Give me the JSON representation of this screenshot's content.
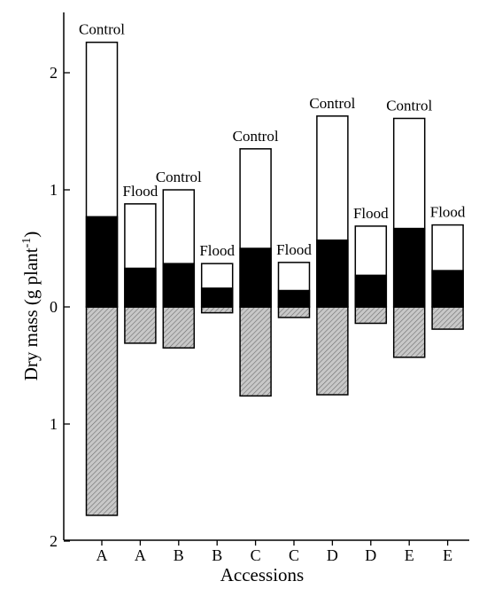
{
  "chart_data": {
    "type": "bar",
    "xlabel": "Accessions",
    "ylabel": "Dry mass (g plant",
    "ylabel_sup": "-1",
    "ylabel_close": ")",
    "yticks": [
      {
        "value": 2,
        "label": "2"
      },
      {
        "value": 1,
        "label": "1"
      },
      {
        "value": 0,
        "label": "0"
      },
      {
        "value": -1,
        "label": "1"
      },
      {
        "value": -2,
        "label": "2"
      }
    ],
    "ylim": [
      -2,
      2.47
    ],
    "categories": [
      "A",
      "A",
      "B",
      "B",
      "C",
      "C",
      "D",
      "D",
      "E",
      "E"
    ],
    "bars": [
      {
        "category": "A",
        "treatment": "Control",
        "black": 0.77,
        "white": 1.49,
        "hatched": 1.78
      },
      {
        "category": "A",
        "treatment": "Flood",
        "black": 0.33,
        "white": 0.55,
        "hatched": 0.31
      },
      {
        "category": "B",
        "treatment": "Control",
        "black": 0.37,
        "white": 0.63,
        "hatched": 0.35
      },
      {
        "category": "B",
        "treatment": "Flood",
        "black": 0.16,
        "white": 0.21,
        "hatched": 0.05
      },
      {
        "category": "C",
        "treatment": "Control",
        "black": 0.5,
        "white": 0.85,
        "hatched": 0.76
      },
      {
        "category": "C",
        "treatment": "Flood",
        "black": 0.14,
        "white": 0.24,
        "hatched": 0.09
      },
      {
        "category": "D",
        "treatment": "Control",
        "black": 0.57,
        "white": 1.06,
        "hatched": 0.75
      },
      {
        "category": "D",
        "treatment": "Flood",
        "black": 0.27,
        "white": 0.42,
        "hatched": 0.14
      },
      {
        "category": "E",
        "treatment": "Control",
        "black": 0.67,
        "white": 0.94,
        "hatched": 0.43
      },
      {
        "category": "E",
        "treatment": "Flood",
        "black": 0.31,
        "white": 0.39,
        "hatched": 0.19
      }
    ],
    "colors": {
      "black": "#000000",
      "white": "#ffffff",
      "hatched": "#c8c8c8",
      "hatch_line": "#6e6e6e"
    }
  }
}
